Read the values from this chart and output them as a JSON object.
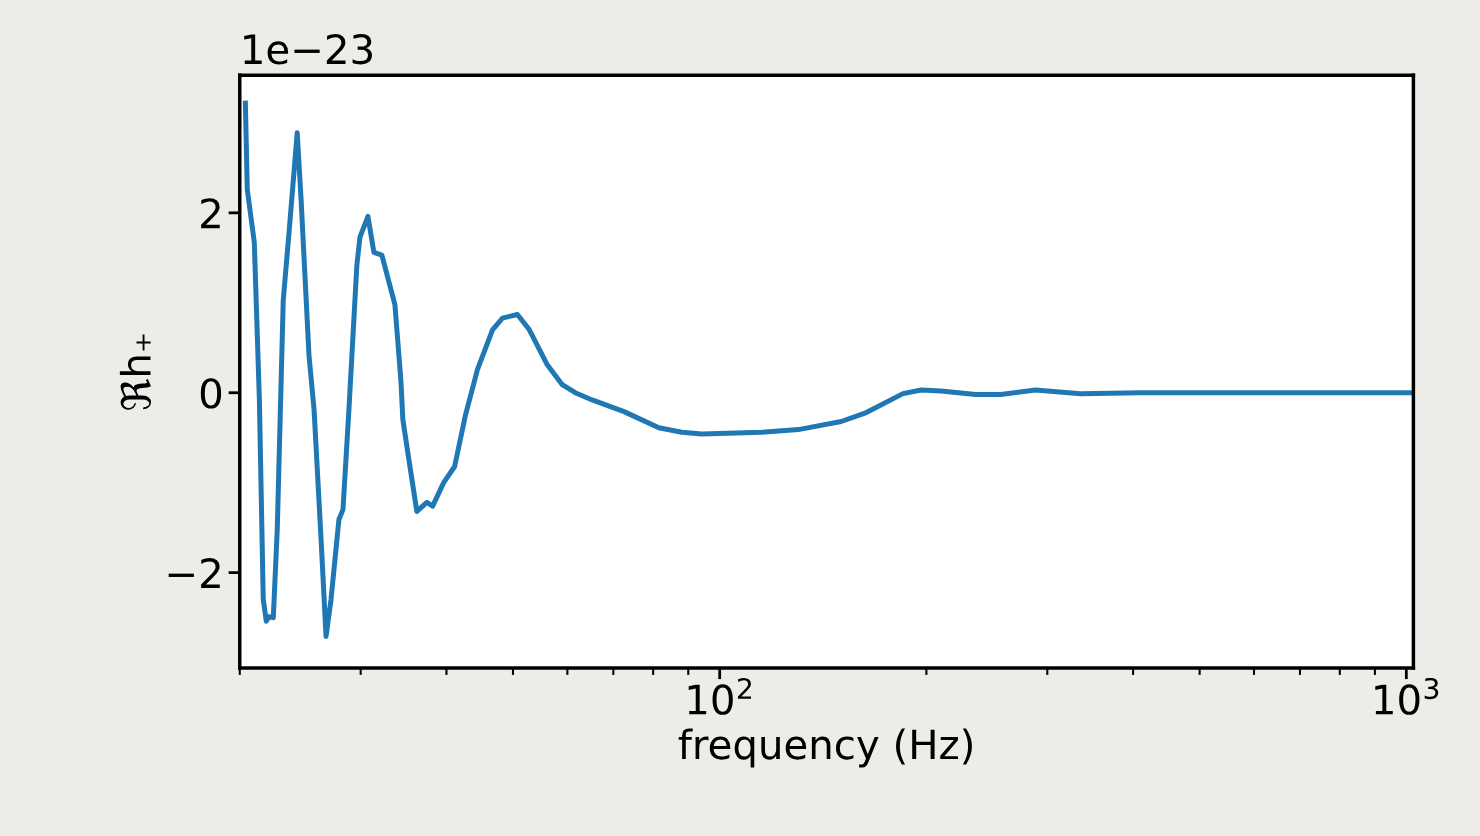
{
  "chart_data": {
    "type": "line",
    "xlabel": "frequency (Hz)",
    "ylabel": "ℜh₊",
    "annotations": [
      "1e−23"
    ],
    "log": "x",
    "grid": false,
    "marker": "none",
    "line_style": "solid",
    "xlim": [
      20,
      1024
    ],
    "xticks": [
      {
        "value": 100,
        "label": "10$^{2}$"
      },
      {
        "value": 1000,
        "label": "10$^{3}$"
      }
    ],
    "ylim": [
      -3.06,
      3.53
    ],
    "yticks": [
      -2,
      0,
      2
    ],
    "series": [
      {
        "color": "#1f77b4",
        "x": [
          20.38,
          20.51,
          21.0,
          21.36,
          21.64,
          21.86,
          22.08,
          22.38,
          22.68,
          23.14,
          23.61,
          24.25,
          24.57,
          25.23,
          25.66,
          26.27,
          26.71,
          27.16,
          27.89,
          28.27,
          28.84,
          29.62,
          29.93,
          30.74,
          31.36,
          32.21,
          33.65,
          34.33,
          34.56,
          35.26,
          36.22,
          37.45,
          38.19,
          39.63,
          41.11,
          42.66,
          44.39,
          46.68,
          48.27,
          50.75,
          52.82,
          56.09,
          58.98,
          61.61,
          65.2,
          72.56,
          81.54,
          88.06,
          94.17,
          115.1,
          130.2,
          150.3,
          163.5,
          184.9,
          196.5,
          210.0,
          236.0,
          256.7,
          288.5,
          335.3,
          409.8,
          1016.9
        ],
        "values": [
          3.22,
          2.26,
          1.67,
          -0.08,
          -2.3,
          -2.54,
          -2.49,
          -2.5,
          -1.52,
          1.03,
          1.81,
          2.89,
          2.14,
          0.41,
          -0.19,
          -1.63,
          -2.71,
          -2.3,
          -1.41,
          -1.3,
          -0.19,
          1.42,
          1.73,
          1.96,
          1.56,
          1.53,
          0.98,
          0.14,
          -0.3,
          -0.74,
          -1.32,
          -1.22,
          -1.26,
          -1.0,
          -0.82,
          -0.24,
          0.26,
          0.7,
          0.83,
          0.87,
          0.7,
          0.31,
          0.09,
          0.0,
          -0.08,
          -0.21,
          -0.39,
          -0.44,
          -0.46,
          -0.44,
          -0.41,
          -0.32,
          -0.22,
          -0.01,
          0.03,
          0.02,
          -0.02,
          -0.02,
          0.03,
          -0.01,
          0.0,
          0.0
        ]
      }
    ]
  }
}
